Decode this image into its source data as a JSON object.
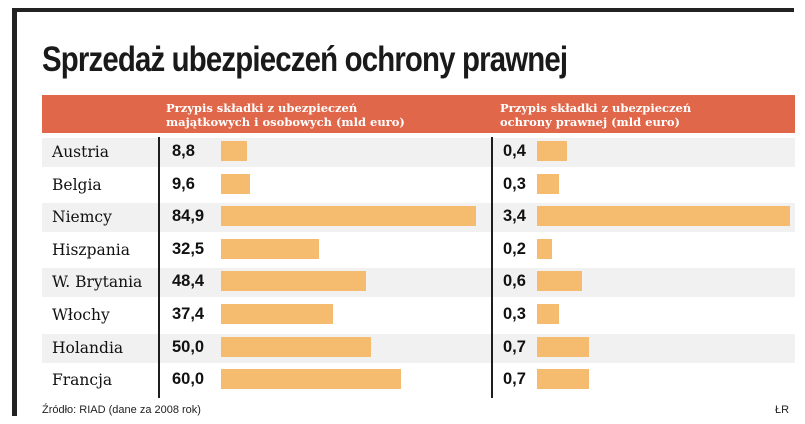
{
  "title": "Sprzedaż ubezpieczeń ochrony prawnej",
  "source": "Źródło: RIAD (dane za 2008 rok)",
  "credit": "ŁR",
  "colors": {
    "header": "#e0674a",
    "bar": "#f5bb6e",
    "row_shade": "#f1f1f1"
  },
  "chart_data": {
    "type": "bar",
    "orientation": "horizontal",
    "categories": [
      "Austria",
      "Belgia",
      "Niemcy",
      "Hiszpania",
      "W. Brytania",
      "Włochy",
      "Holandia",
      "Francja"
    ],
    "series": [
      {
        "name": [
          "Przypis składki z ubezpieczeń",
          "majątkowych i osobowych (mld euro)"
        ],
        "values": [
          8.8,
          9.6,
          84.9,
          32.5,
          48.4,
          37.4,
          50.0,
          60.0
        ],
        "labels": [
          "8,8",
          "9,6",
          "84,9",
          "32,5",
          "48,4",
          "37,4",
          "50,0",
          "60,0"
        ]
      },
      {
        "name": [
          "Przypis składki z ubezpieczeń",
          "ochrony prawnej (mld euro)"
        ],
        "values": [
          0.4,
          0.3,
          3.4,
          0.2,
          0.6,
          0.3,
          0.7,
          0.7
        ],
        "labels": [
          "0,4",
          "0,3",
          "3,4",
          "0,2",
          "0,6",
          "0,3",
          "0,7",
          "0,7"
        ]
      }
    ]
  }
}
